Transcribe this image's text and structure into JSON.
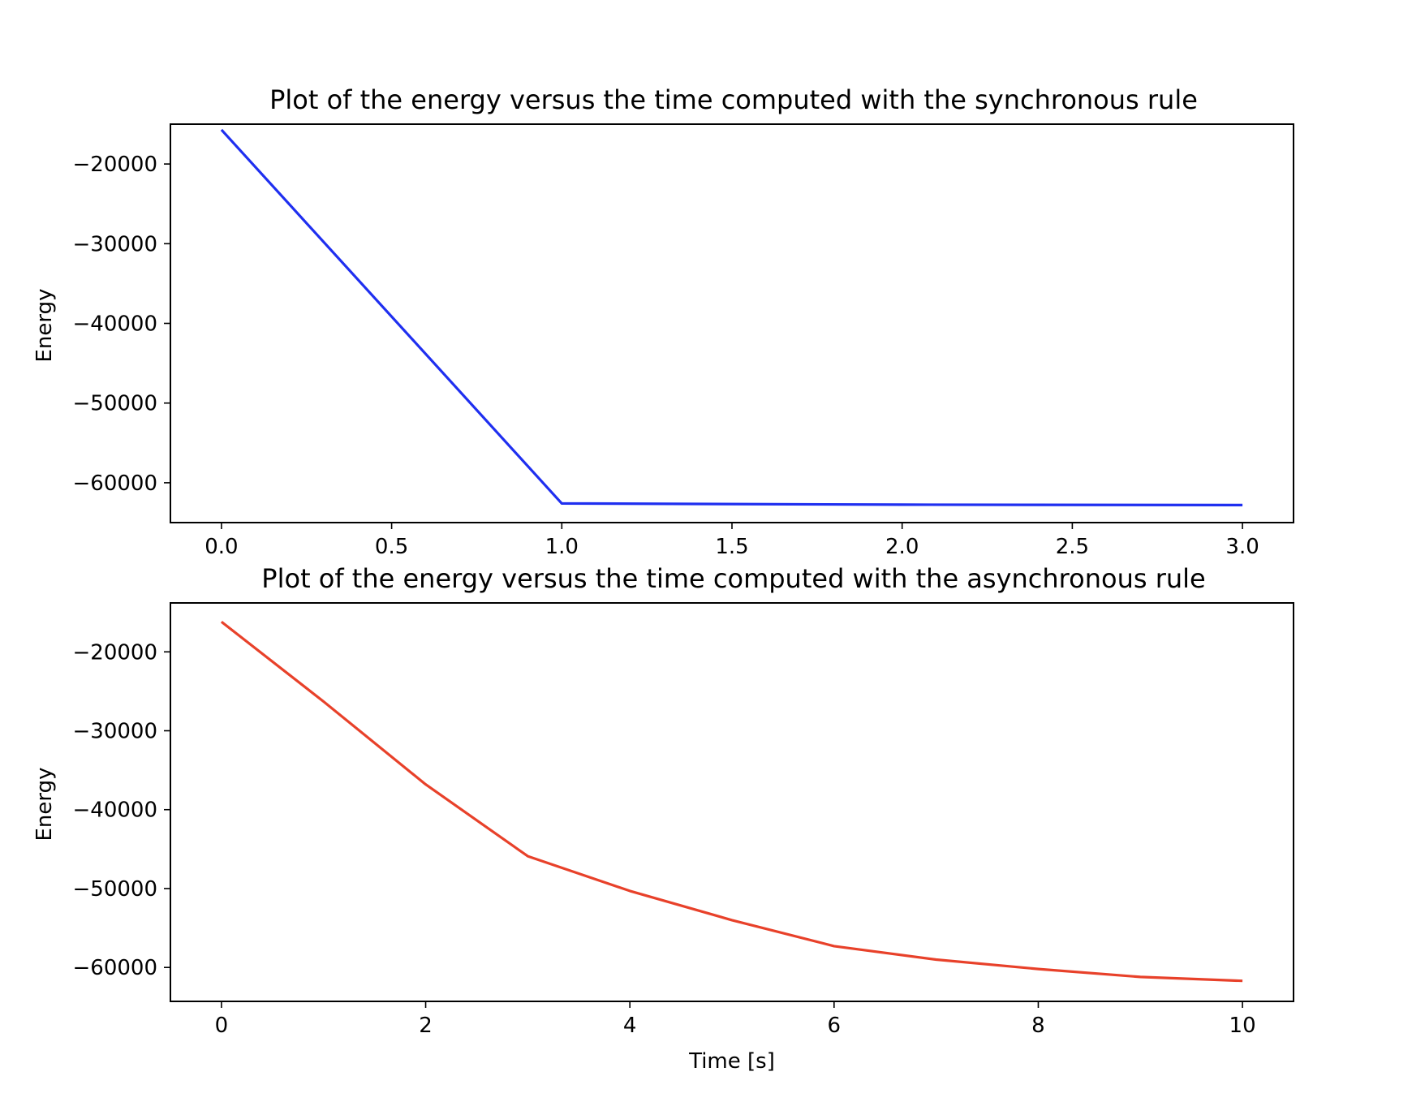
{
  "chart_data": [
    {
      "type": "line",
      "title": "Plot of the energy versus the time computed with the synchronous rule",
      "xlabel": "",
      "ylabel": "Energy",
      "xlim": [
        -0.15,
        3.15
      ],
      "ylim": [
        -65000,
        -15000
      ],
      "xticks": [
        0.0,
        0.5,
        1.0,
        1.5,
        2.0,
        2.5,
        3.0
      ],
      "xtick_labels": [
        "0.0",
        "0.5",
        "1.0",
        "1.5",
        "2.0",
        "2.5",
        "3.0"
      ],
      "yticks": [
        -20000,
        -30000,
        -40000,
        -50000,
        -60000
      ],
      "ytick_labels": [
        "−20000",
        "−30000",
        "−40000",
        "−50000",
        "−60000"
      ],
      "grid": false,
      "series": [
        {
          "color": "#1f2ff0",
          "x": [
            0,
            1,
            2,
            3
          ],
          "y": [
            -15700,
            -62600,
            -62750,
            -62800
          ]
        }
      ]
    },
    {
      "type": "line",
      "title": "Plot of the energy versus the time computed with the asynchronous rule",
      "xlabel": "Time [s]",
      "ylabel": "Energy",
      "xlim": [
        -0.5,
        10.5
      ],
      "ylim": [
        -64300,
        -13800
      ],
      "xticks": [
        0,
        2,
        4,
        6,
        8,
        10
      ],
      "xtick_labels": [
        "0",
        "2",
        "4",
        "6",
        "8",
        "10"
      ],
      "yticks": [
        -20000,
        -30000,
        -40000,
        -50000,
        -60000
      ],
      "ytick_labels": [
        "−20000",
        "−30000",
        "−40000",
        "−50000",
        "−60000"
      ],
      "grid": false,
      "series": [
        {
          "color": "#e8412a",
          "x": [
            0,
            1,
            2,
            3,
            4,
            5,
            6,
            7,
            8,
            9,
            10
          ],
          "y": [
            -16200,
            -26300,
            -36800,
            -45900,
            -50300,
            -54000,
            -57300,
            -59000,
            -60200,
            -61200,
            -61700
          ]
        }
      ]
    }
  ]
}
